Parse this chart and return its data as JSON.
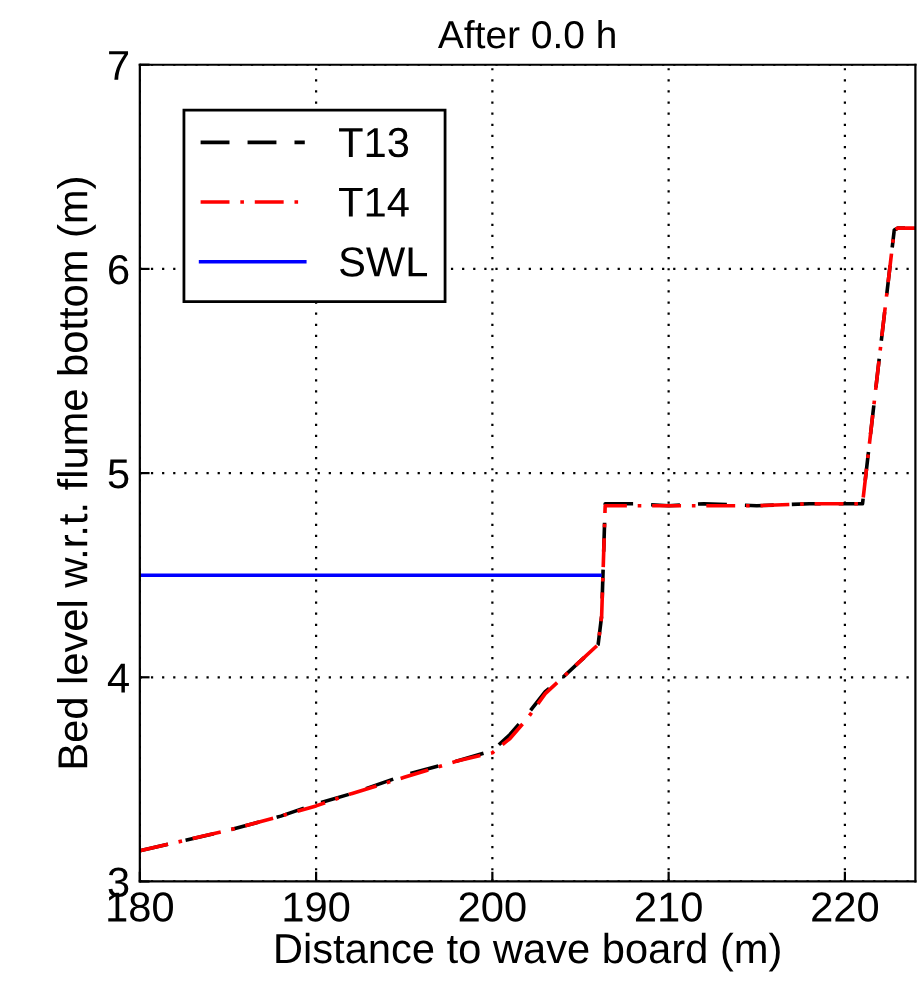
{
  "chart_data": {
    "type": "line",
    "title": "After 0.0 h",
    "xlabel": "Distance to wave board (m)",
    "ylabel": "Bed level w.r.t. flume bottom (m)",
    "series": [
      {
        "name": "T13",
        "color": "#000000",
        "line_style": "dashed",
        "x": [
          180,
          182,
          185,
          188,
          190,
          192,
          195,
          198,
          200,
          201,
          202,
          203,
          204,
          205,
          206,
          206.2,
          206.4,
          208,
          210,
          212,
          215,
          218,
          221,
          221.2,
          222,
          222.8,
          223,
          224
        ],
        "values": [
          3.15,
          3.19,
          3.25,
          3.32,
          3.38,
          3.43,
          3.52,
          3.59,
          3.64,
          3.72,
          3.82,
          3.93,
          4.0,
          4.08,
          4.16,
          4.3,
          4.85,
          4.85,
          4.84,
          4.85,
          4.84,
          4.85,
          4.85,
          5.0,
          5.6,
          6.19,
          6.2,
          6.2
        ]
      },
      {
        "name": "T14",
        "color": "#ff0000",
        "line_style": "dashdot",
        "x": [
          180,
          182,
          185,
          188,
          190,
          192,
          195,
          198,
          200,
          201,
          202,
          203,
          204,
          205,
          206,
          206.2,
          206.4,
          208,
          210,
          212,
          215,
          218,
          221,
          221.2,
          222,
          222.8,
          223,
          224
        ],
        "values": [
          3.15,
          3.19,
          3.25,
          3.32,
          3.37,
          3.43,
          3.51,
          3.59,
          3.63,
          3.7,
          3.8,
          3.92,
          4.0,
          4.08,
          4.16,
          4.3,
          4.84,
          4.84,
          4.84,
          4.84,
          4.84,
          4.85,
          4.85,
          5.0,
          5.6,
          6.19,
          6.2,
          6.2
        ]
      },
      {
        "name": "SWL",
        "color": "#0000ff",
        "line_style": "solid",
        "x": [
          180,
          206.1
        ],
        "values": [
          4.5,
          4.5
        ]
      }
    ],
    "xlim": [
      180,
      224
    ],
    "ylim": [
      3,
      7
    ],
    "xticks": [
      180,
      190,
      200,
      210,
      220
    ],
    "yticks": [
      3,
      4,
      5,
      6,
      7
    ],
    "grid": true,
    "legend": "top left"
  }
}
